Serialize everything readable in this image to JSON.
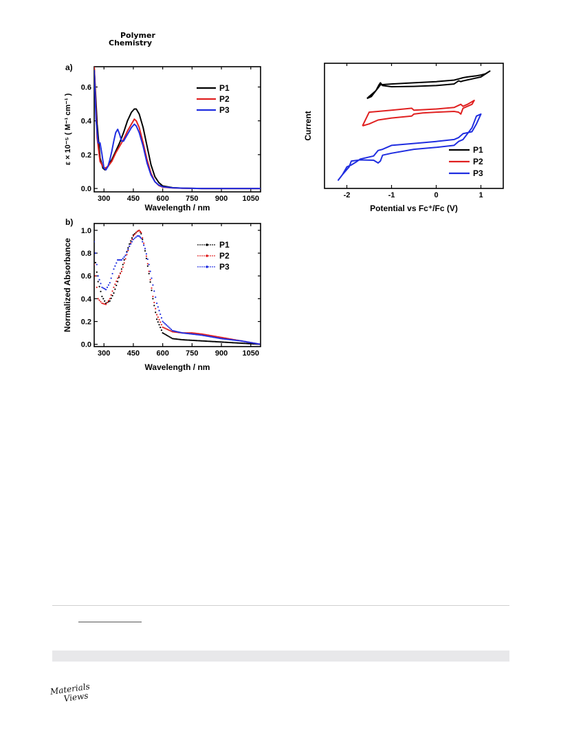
{
  "journal": {
    "line1": "Polymer",
    "line2": "Chemistry"
  },
  "logo": {
    "line1": "Materials",
    "line2": "Views"
  },
  "colors": {
    "P1": "#000000",
    "P2": "#e02020",
    "P3": "#1f2de0"
  },
  "chart_data": [
    {
      "panel": "a)",
      "type": "line",
      "xlabel": "Wavelength / nm",
      "ylabel": "ε × 10⁻⁵ ( M⁻¹ cm⁻¹ )",
      "xlim": [
        250,
        1100
      ],
      "ylim": [
        -0.02,
        0.72
      ],
      "xticks": [
        300,
        450,
        600,
        750,
        900,
        1050
      ],
      "yticks": [
        0.0,
        0.2,
        0.4,
        0.6
      ],
      "legend": "top-right",
      "series": [
        {
          "name": "P1",
          "color": "#000000",
          "x": [
            250,
            265,
            280,
            295,
            305,
            320,
            340,
            360,
            380,
            400,
            420,
            440,
            455,
            465,
            480,
            500,
            520,
            540,
            560,
            580,
            600,
            650,
            700,
            800,
            900,
            1000,
            1100
          ],
          "y": [
            0.72,
            0.38,
            0.18,
            0.12,
            0.11,
            0.13,
            0.17,
            0.22,
            0.27,
            0.33,
            0.4,
            0.45,
            0.47,
            0.47,
            0.44,
            0.36,
            0.25,
            0.14,
            0.07,
            0.035,
            0.015,
            0.005,
            0.002,
            0.0,
            0.0,
            0.0,
            0.0
          ]
        },
        {
          "name": "P2",
          "color": "#e02020",
          "x": [
            250,
            265,
            280,
            295,
            305,
            320,
            340,
            360,
            380,
            400,
            420,
            440,
            455,
            465,
            480,
            500,
            520,
            540,
            560,
            580,
            600,
            650,
            700,
            800,
            900,
            1000,
            1100
          ],
          "y": [
            0.72,
            0.3,
            0.16,
            0.13,
            0.12,
            0.13,
            0.16,
            0.21,
            0.25,
            0.29,
            0.34,
            0.38,
            0.41,
            0.4,
            0.36,
            0.27,
            0.17,
            0.09,
            0.04,
            0.018,
            0.008,
            0.003,
            0.001,
            0.0,
            0.0,
            0.0,
            0.0
          ]
        },
        {
          "name": "P3",
          "color": "#1f2de0",
          "x": [
            250,
            260,
            270,
            280,
            290,
            300,
            310,
            320,
            330,
            340,
            350,
            360,
            370,
            380,
            390,
            400,
            420,
            440,
            455,
            465,
            480,
            500,
            520,
            540,
            560,
            580,
            600,
            650,
            700,
            800,
            900,
            1000,
            1100
          ],
          "y": [
            0.7,
            0.4,
            0.27,
            0.27,
            0.2,
            0.12,
            0.11,
            0.13,
            0.17,
            0.22,
            0.28,
            0.33,
            0.35,
            0.32,
            0.28,
            0.28,
            0.32,
            0.36,
            0.38,
            0.37,
            0.33,
            0.25,
            0.15,
            0.08,
            0.04,
            0.02,
            0.01,
            0.004,
            0.002,
            0.0,
            0.0,
            0.0,
            0.0
          ]
        }
      ]
    },
    {
      "panel": "b)",
      "type": "scatter",
      "xlabel": "Wavelength / nm",
      "ylabel": "Normalized Absorbance",
      "xlim": [
        250,
        1100
      ],
      "ylim": [
        -0.02,
        1.06
      ],
      "xticks": [
        300,
        450,
        600,
        750,
        900,
        1050
      ],
      "yticks": [
        0.0,
        0.2,
        0.4,
        0.6,
        0.8,
        1.0
      ],
      "legend": "top-right",
      "series": [
        {
          "name": "P1",
          "color": "#000000",
          "x": [
            250,
            270,
            290,
            310,
            330,
            350,
            370,
            390,
            410,
            430,
            450,
            470,
            480,
            490,
            510,
            530,
            550,
            570,
            600,
            650,
            700,
            800,
            900,
            1000,
            1100
          ],
          "y": [
            0.8,
            0.55,
            0.42,
            0.36,
            0.38,
            0.45,
            0.55,
            0.66,
            0.78,
            0.88,
            0.96,
            0.99,
            1.0,
            0.97,
            0.82,
            0.62,
            0.4,
            0.22,
            0.1,
            0.05,
            0.04,
            0.03,
            0.02,
            0.01,
            0.0
          ]
        },
        {
          "name": "P2",
          "color": "#e02020",
          "x": [
            250,
            270,
            290,
            310,
            330,
            350,
            370,
            390,
            410,
            430,
            450,
            470,
            480,
            490,
            510,
            530,
            550,
            570,
            600,
            650,
            700,
            750,
            800,
            900,
            1000,
            1100
          ],
          "y": [
            0.7,
            0.4,
            0.36,
            0.35,
            0.4,
            0.5,
            0.58,
            0.64,
            0.75,
            0.86,
            0.95,
            0.99,
            1.0,
            0.98,
            0.84,
            0.64,
            0.42,
            0.26,
            0.15,
            0.11,
            0.1,
            0.1,
            0.09,
            0.06,
            0.03,
            0.0
          ]
        },
        {
          "name": "P3",
          "color": "#1f2de0",
          "x": [
            250,
            270,
            290,
            310,
            330,
            350,
            370,
            390,
            410,
            430,
            450,
            470,
            480,
            490,
            510,
            530,
            550,
            570,
            600,
            650,
            700,
            750,
            800,
            900,
            1000,
            1100
          ],
          "y": [
            0.9,
            0.6,
            0.5,
            0.48,
            0.54,
            0.66,
            0.74,
            0.74,
            0.78,
            0.86,
            0.92,
            0.95,
            0.95,
            0.93,
            0.84,
            0.7,
            0.52,
            0.36,
            0.2,
            0.12,
            0.1,
            0.09,
            0.08,
            0.05,
            0.03,
            0.0
          ]
        }
      ]
    },
    {
      "panel": "",
      "type": "line",
      "xlabel": "Potential vs Fc⁺/Fc (V)",
      "ylabel": "Current",
      "xlim": [
        -2.5,
        1.5
      ],
      "xticks": [
        -2,
        -1,
        0,
        1
      ],
      "yticks": [],
      "legend": "bottom-right",
      "series": [
        {
          "name": "P1",
          "color": "#000000",
          "x": [
            -1.55,
            -1.45,
            -1.35,
            -1.28,
            -1.25,
            -1.2,
            -1.0,
            -0.5,
            0.0,
            0.4,
            0.5,
            0.55,
            0.6,
            0.8,
            1.0,
            1.2,
            1.2,
            1.1,
            1.0,
            0.9,
            0.7,
            0.6,
            0.5,
            0.4,
            0.0,
            -0.5,
            -1.0,
            -1.25,
            -1.3,
            -1.35,
            -1.4,
            -1.5,
            -1.55
          ],
          "y": [
            -0.15,
            -0.1,
            0.05,
            0.2,
            0.25,
            0.18,
            0.15,
            0.16,
            0.18,
            0.22,
            0.3,
            0.28,
            0.3,
            0.35,
            0.4,
            0.55,
            0.55,
            0.48,
            0.45,
            0.43,
            0.4,
            0.38,
            0.35,
            0.32,
            0.28,
            0.25,
            0.22,
            0.2,
            0.12,
            0.05,
            0.0,
            -0.1,
            -0.15
          ]
        },
        {
          "name": "P2",
          "color": "#e02020",
          "x": [
            -1.65,
            -1.5,
            -1.3,
            -1.0,
            -0.55,
            -0.5,
            -0.3,
            0.0,
            0.4,
            0.5,
            0.55,
            0.6,
            0.8,
            0.85,
            0.85,
            0.7,
            0.6,
            0.55,
            0.4,
            0.0,
            -0.5,
            -0.55,
            -1.0,
            -1.3,
            -1.5,
            -1.65
          ],
          "y": [
            -0.85,
            -0.8,
            -0.7,
            -0.65,
            -0.6,
            -0.55,
            -0.52,
            -0.5,
            -0.48,
            -0.5,
            -0.55,
            -0.4,
            -0.3,
            -0.2,
            -0.2,
            -0.3,
            -0.35,
            -0.3,
            -0.38,
            -0.42,
            -0.45,
            -0.4,
            -0.45,
            -0.48,
            -0.5,
            -0.85
          ]
        },
        {
          "name": "P3",
          "color": "#1f2de0",
          "x": [
            -2.2,
            -2.1,
            -1.95,
            -1.9,
            -1.7,
            -1.4,
            -1.3,
            -1.25,
            -1.2,
            -1.0,
            -0.5,
            0.0,
            0.4,
            0.5,
            0.6,
            0.8,
            0.9,
            1.0,
            1.0,
            0.9,
            0.8,
            0.6,
            0.5,
            0.4,
            0.0,
            -0.5,
            -1.0,
            -1.2,
            -1.3,
            -1.4,
            -1.7,
            -1.8,
            -1.9,
            -2.0,
            -2.1,
            -2.2
          ],
          "y": [
            -2.25,
            -2.1,
            -1.9,
            -1.75,
            -1.72,
            -1.73,
            -1.8,
            -1.75,
            -1.6,
            -1.55,
            -1.45,
            -1.4,
            -1.35,
            -1.25,
            -1.2,
            -0.9,
            -0.6,
            -0.55,
            -0.55,
            -0.8,
            -1.0,
            -1.05,
            -1.15,
            -1.2,
            -1.25,
            -1.3,
            -1.35,
            -1.45,
            -1.48,
            -1.62,
            -1.7,
            -1.78,
            -1.85,
            -1.9,
            -2.1,
            -2.25
          ]
        }
      ]
    }
  ]
}
